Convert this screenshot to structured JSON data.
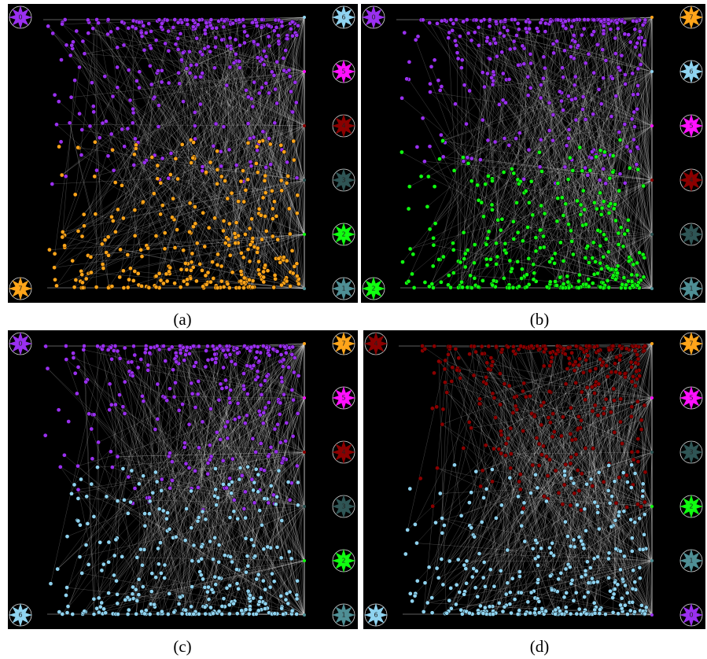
{
  "panels": [
    {
      "caption": "(a)",
      "top": {
        "label": "0",
        "color": "#9a30f0"
      },
      "bottom": {
        "label": "7",
        "color": "#ffa51a"
      },
      "right": [
        {
          "label": "6",
          "color": "#8fd3f0"
        },
        {
          "label": "5",
          "color": "#ff10ff"
        },
        {
          "label": "4",
          "color": "#8b0000"
        },
        {
          "label": "3",
          "color": "#2f5555"
        },
        {
          "label": "2",
          "color": "#10ff10"
        },
        {
          "label": "1",
          "color": "#4f8f95"
        }
      ]
    },
    {
      "caption": "(b)",
      "top": {
        "label": "0",
        "color": "#9a30f0"
      },
      "bottom": {
        "label": "2",
        "color": "#10ff10"
      },
      "right": [
        {
          "label": "7",
          "color": "#ffa51a"
        },
        {
          "label": "6",
          "color": "#8fd3f0"
        },
        {
          "label": "5",
          "color": "#ff10ff"
        },
        {
          "label": "4",
          "color": "#8b0000"
        },
        {
          "label": "3",
          "color": "#2f5555"
        },
        {
          "label": "1",
          "color": "#4f8f95"
        }
      ]
    },
    {
      "caption": "(c)",
      "top": {
        "label": "0",
        "color": "#9a30f0"
      },
      "bottom": {
        "label": "6",
        "color": "#8fd3f0"
      },
      "right": [
        {
          "label": "7",
          "color": "#ffa51a"
        },
        {
          "label": "5",
          "color": "#ff10ff"
        },
        {
          "label": "4",
          "color": "#8b0000"
        },
        {
          "label": "3",
          "color": "#2f5555"
        },
        {
          "label": "2",
          "color": "#10ff10"
        },
        {
          "label": "1",
          "color": "#4f8f95"
        }
      ]
    },
    {
      "caption": "(d)",
      "top": {
        "label": "4",
        "color": "#8b0000"
      },
      "bottom": {
        "label": "6",
        "color": "#8fd3f0"
      },
      "right": [
        {
          "label": "7",
          "color": "#ffa51a"
        },
        {
          "label": "5",
          "color": "#ff10ff"
        },
        {
          "label": "3",
          "color": "#2f5555"
        },
        {
          "label": "2",
          "color": "#10ff10"
        },
        {
          "label": "1",
          "color": "#4f8f95"
        },
        {
          "label": "0",
          "color": "#9a30f0"
        }
      ]
    }
  ]
}
